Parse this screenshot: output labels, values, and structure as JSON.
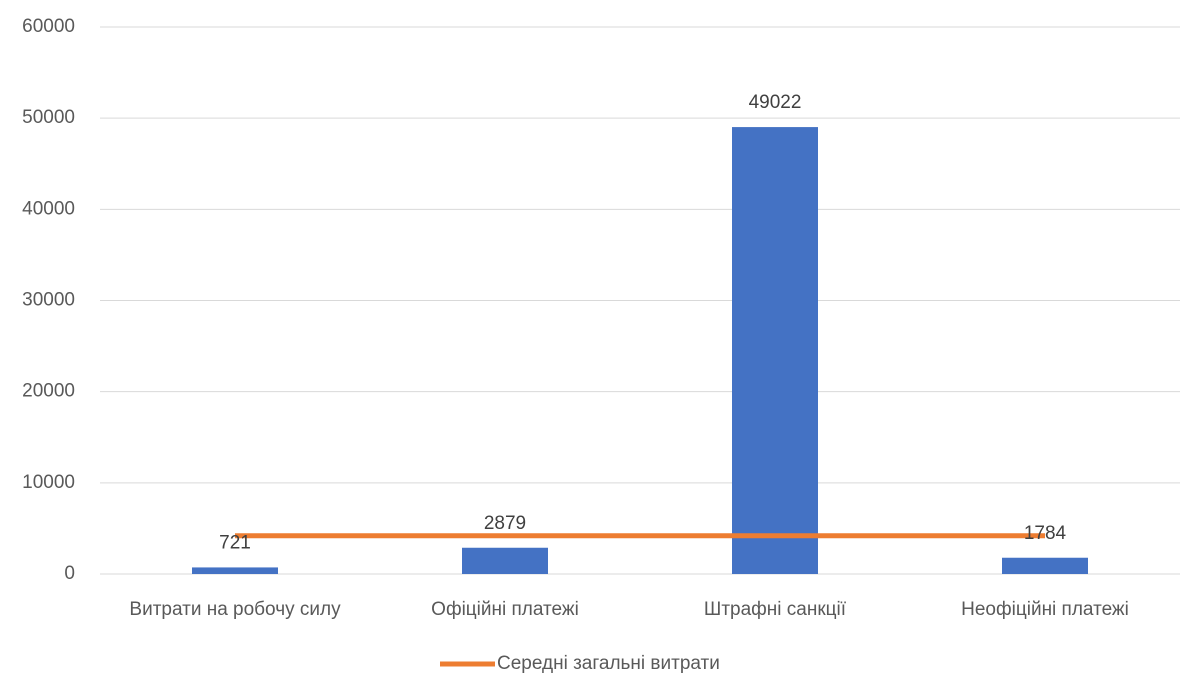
{
  "chart_data": {
    "type": "bar",
    "categories": [
      "Витрати на робочу силу",
      "Офіційні платежі",
      "Штрафні санкції",
      "Неофіційні платежі"
    ],
    "values": [
      721,
      2879,
      49022,
      1784
    ],
    "color": "#4472c4",
    "line": {
      "name": "Середні загальні витрати",
      "color": "#ed7d31",
      "values": [
        4200,
        4200,
        4200,
        4200
      ]
    },
    "ylim": [
      0,
      60000
    ],
    "yticks": [
      0,
      10000,
      20000,
      30000,
      40000,
      50000,
      60000
    ],
    "grid": true,
    "legend": "bottom"
  }
}
